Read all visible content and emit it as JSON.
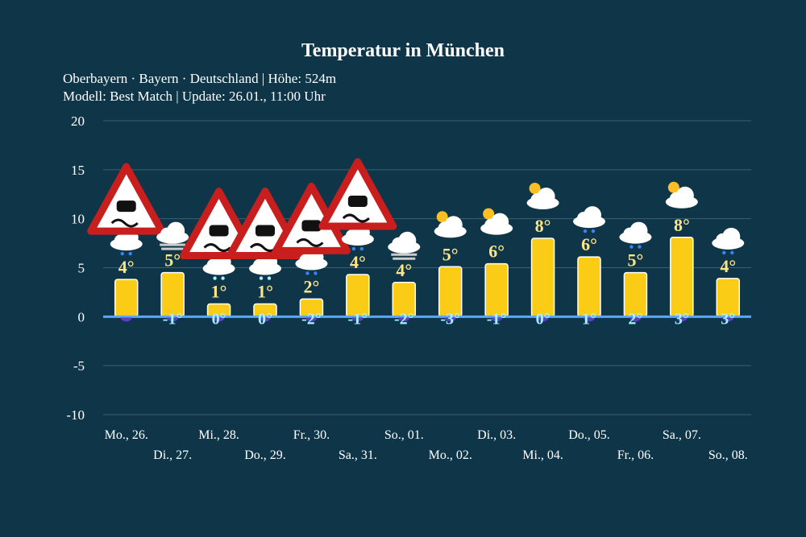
{
  "chart_data": {
    "type": "bar",
    "title": "Temperatur in München",
    "subtitle": [
      "Oberbayern · Bayern · Deutschland | Höhe: 524m",
      "Modell: Best Match | Update: 26.01., 11:00 Uhr"
    ],
    "categories": [
      "Mo., 26.",
      "Di., 27.",
      "Mi., 28.",
      "Do., 29.",
      "Fr., 30.",
      "Sa., 31.",
      "So., 01.",
      "Mo., 02.",
      "Di., 03.",
      "Mi., 04.",
      "Do., 05.",
      "Fr., 06.",
      "Sa., 07.",
      "So., 08."
    ],
    "values": [
      3.8,
      4.5,
      1.3,
      1.3,
      1.8,
      4.3,
      3.5,
      5.1,
      5.4,
      8.0,
      6.1,
      4.5,
      8.1,
      3.9
    ],
    "max_labels": [
      "4°",
      "5°",
      "1°",
      "1°",
      "2°",
      "4°",
      "4°",
      "5°",
      "6°",
      "8°",
      "6°",
      "5°",
      "8°",
      "4°"
    ],
    "min_labels": [
      "",
      "-1°",
      "0°",
      "0°",
      "-2°",
      "-1°",
      "-2°",
      "-3°",
      "-1°",
      "0°",
      "1°",
      "2°",
      "3°",
      "3°"
    ],
    "icons": [
      "cloud-rain",
      "cloud-fog",
      "cloud-sleet",
      "cloud-sleet",
      "cloud-rain",
      "cloud-rain",
      "cloud-fog",
      "sun-cloud",
      "sun-cloud",
      "sun-cloud",
      "cloud-rain",
      "cloud-rain",
      "sun-cloud",
      "cloud-rain"
    ],
    "warnings": [
      true,
      false,
      true,
      true,
      true,
      true,
      false,
      false,
      false,
      false,
      false,
      false,
      false,
      false
    ],
    "yticks": [
      20,
      15,
      10,
      5,
      0,
      -5,
      -10
    ],
    "ylim": [
      -10,
      20
    ],
    "grid": true,
    "colors": {
      "bar": "#facc15",
      "max_label": "#fde68a",
      "min_label": "#a5f3fc",
      "zero_line": "#60a5fa",
      "background": "#0e3648"
    }
  }
}
